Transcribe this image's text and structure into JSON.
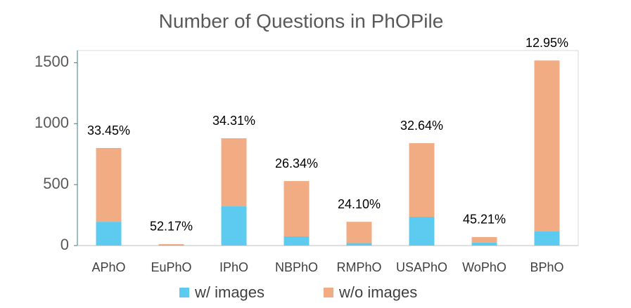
{
  "chart_data": {
    "type": "stacked_bar",
    "title": "Number of Questions in PhOPile",
    "categories": [
      "APhO",
      "EuPhO",
      "IPhO",
      "NBPhO",
      "RMPhO",
      "USAPhO",
      "WoPhO",
      "BPhO"
    ],
    "series": [
      {
        "name": "w/ images",
        "color": "#5dcbf0",
        "values": [
          195,
          6,
          322,
          75,
          20,
          236,
          25,
          115
        ]
      },
      {
        "name": "w/o images",
        "color": "#f2ac84",
        "values": [
          605,
          6,
          558,
          454,
          175,
          604,
          45,
          1403
        ]
      }
    ],
    "annotations": [
      "33.45%",
      "52.17%",
      "34.31%",
      "26.34%",
      "24.10%",
      "32.64%",
      "45.21%",
      "12.95%"
    ],
    "ylim": [
      0,
      1600
    ],
    "yticks": [
      0,
      500,
      1000,
      1500
    ],
    "grid": false,
    "legend": "bottom"
  }
}
